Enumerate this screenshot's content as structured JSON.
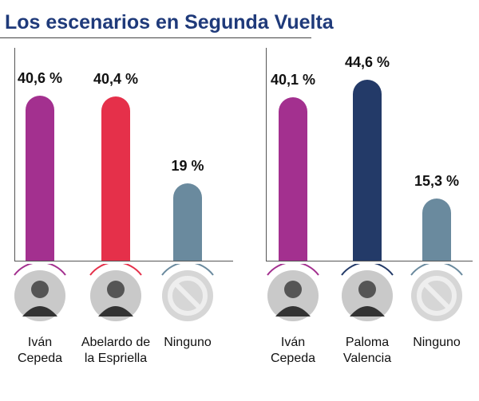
{
  "title": "Los escenarios en Segunda Vuelta",
  "chart_data": [
    {
      "type": "bar",
      "categories": [
        "Iván Cepeda",
        "Abelardo de la Espriella",
        "Ninguno"
      ],
      "values": [
        40.6,
        40.4,
        19
      ],
      "value_labels": [
        "40,6 %",
        "40,4 %",
        "19 %"
      ],
      "colors": [
        "#a3308f",
        "#e5304a",
        "#6a8a9e"
      ]
    },
    {
      "type": "bar",
      "categories": [
        "Iván Cepeda",
        "Paloma Valencia",
        "Ninguno"
      ],
      "values": [
        40.1,
        44.6,
        15.3
      ],
      "value_labels": [
        "40,1 %",
        "44,6 %",
        "15,3 %"
      ],
      "colors": [
        "#a3308f",
        "#233a68",
        "#6a8a9e"
      ]
    }
  ]
}
